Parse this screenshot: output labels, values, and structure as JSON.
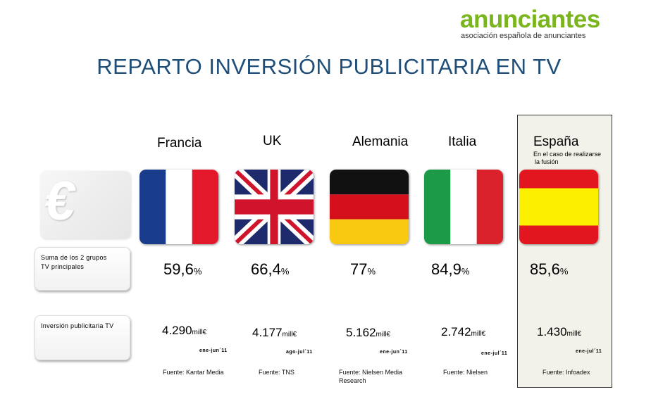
{
  "logo": {
    "name": "anunciantes",
    "subtitle": "asociación española de anunciantes"
  },
  "title": "REPARTO INVERSIÓN PUBLICITARIA EN TV",
  "row_labels": {
    "share": [
      "Suma de los 2 grupos",
      "TV principales"
    ],
    "investment": "Inversión publicitaria TV"
  },
  "countries": [
    {
      "name": "Francia",
      "share": "59,6",
      "share_unit": "%",
      "investment": "4.290",
      "investment_unit": "mill€",
      "period": "ene-jun´11",
      "source": "Fuente: Kantar Media"
    },
    {
      "name": "UK",
      "share": "66,4",
      "share_unit": "%",
      "investment": "4.177",
      "investment_unit": "mill€",
      "period": "ago-jul´11",
      "source": "Fuente: TNS"
    },
    {
      "name": "Alemania",
      "share": "77",
      "share_unit": "%",
      "investment": "5.162",
      "investment_unit": "mill€",
      "period": "ene-jun´11",
      "source": "Fuente: Nielsen Media Research"
    },
    {
      "name": "Italia",
      "share": "84,9",
      "share_unit": "%",
      "investment": "2.742",
      "investment_unit": "mill€",
      "period": "ene-jul´11",
      "source": "Fuente: Nielsen"
    },
    {
      "name": "España",
      "share": "85,6",
      "share_unit": "%",
      "investment": "1.430",
      "investment_unit": "mill€",
      "period": "ene-jul´11",
      "source": "Fuente: Infoadex",
      "note": [
        "En el caso de realizarse",
        "la fusión"
      ]
    }
  ],
  "colors": {
    "title": "#1f4e79",
    "logo": "#7ab51d",
    "highlight_bg": "#f3f2ea"
  },
  "icons": {
    "euro": "euro-icon",
    "flags": [
      "france-flag",
      "uk-flag",
      "germany-flag",
      "italy-flag",
      "spain-flag"
    ]
  }
}
